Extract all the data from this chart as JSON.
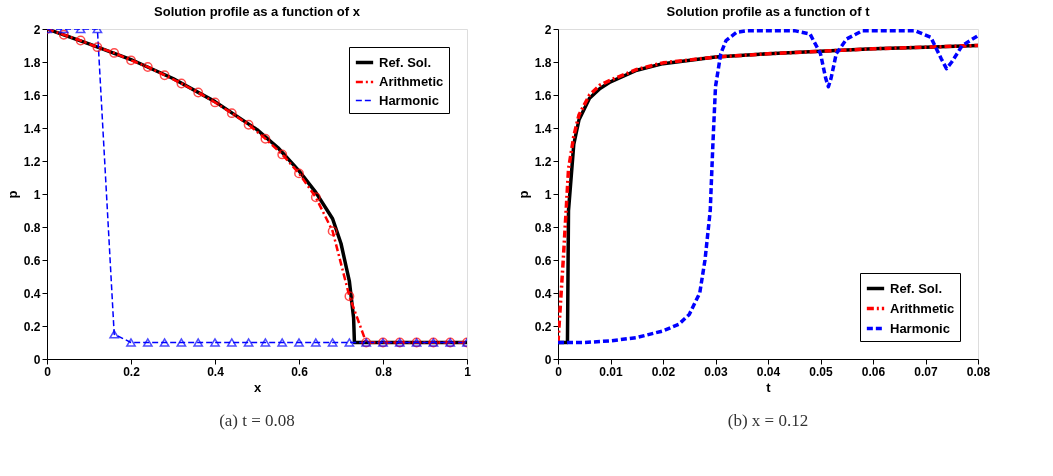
{
  "chart_data": [
    {
      "type": "line",
      "title": "Solution profile as a function of x",
      "xlabel": "x",
      "ylabel": "p",
      "xlim": [
        0,
        1
      ],
      "ylim": [
        0,
        2
      ],
      "xticks": [
        0,
        0.2,
        0.4,
        0.6,
        0.8,
        1
      ],
      "yticks": [
        0,
        0.2,
        0.4,
        0.6,
        0.8,
        1,
        1.2,
        1.4,
        1.6,
        1.8,
        2
      ],
      "grid": false,
      "legend": "top right",
      "annotations": [
        "(a) t = 0.08"
      ],
      "series": [
        {
          "name": "Ref. Sol.",
          "color": "#000000",
          "line_style": "solid",
          "marker": "none",
          "x": [
            0,
            0.1,
            0.2,
            0.3,
            0.4,
            0.5,
            0.55,
            0.6,
            0.64,
            0.68,
            0.7,
            0.72,
            0.73,
            0.732,
            0.8,
            0.9,
            1
          ],
          "values": [
            2,
            1.91,
            1.815,
            1.7,
            1.56,
            1.39,
            1.28,
            1.14,
            1.01,
            0.85,
            0.7,
            0.47,
            0.25,
            0.1,
            0.1,
            0.1,
            0.1
          ]
        },
        {
          "name": "Arithmetic",
          "color": "#ff0000",
          "line_style": "dotted",
          "marker": "circle",
          "x": [
            0,
            0.04,
            0.08,
            0.12,
            0.16,
            0.2,
            0.24,
            0.28,
            0.32,
            0.36,
            0.4,
            0.44,
            0.48,
            0.52,
            0.56,
            0.6,
            0.64,
            0.68,
            0.72,
            0.76,
            0.8,
            0.84,
            0.88,
            0.92,
            0.96,
            1
          ],
          "values": [
            2,
            1.965,
            1.93,
            1.89,
            1.855,
            1.81,
            1.77,
            1.72,
            1.67,
            1.615,
            1.555,
            1.49,
            1.42,
            1.335,
            1.24,
            1.125,
            0.98,
            0.775,
            0.38,
            0.1,
            0.1,
            0.1,
            0.1,
            0.1,
            0.1,
            0.1
          ]
        },
        {
          "name": "Harmonic",
          "color": "#0000ff",
          "line_style": "dashed",
          "marker": "triangle",
          "x": [
            0,
            0.04,
            0.08,
            0.12,
            0.16,
            0.2,
            0.24,
            0.28,
            0.32,
            0.36,
            0.4,
            0.44,
            0.48,
            0.52,
            0.56,
            0.6,
            0.64,
            0.68,
            0.72,
            0.76,
            0.8,
            0.84,
            0.88,
            0.92,
            0.96,
            1
          ],
          "values": [
            2,
            2,
            2,
            2,
            0.15,
            0.1,
            0.1,
            0.1,
            0.1,
            0.1,
            0.1,
            0.1,
            0.1,
            0.1,
            0.1,
            0.1,
            0.1,
            0.1,
            0.1,
            0.1,
            0.1,
            0.1,
            0.1,
            0.1,
            0.1,
            0.1
          ]
        }
      ]
    },
    {
      "type": "line",
      "title": "Solution profile as a function of t",
      "xlabel": "t",
      "ylabel": "p",
      "xlim": [
        0,
        0.08
      ],
      "ylim": [
        0,
        2
      ],
      "xticks": [
        0,
        0.01,
        0.02,
        0.03,
        0.04,
        0.05,
        0.06,
        0.07,
        0.08
      ],
      "yticks": [
        0,
        0.2,
        0.4,
        0.6,
        0.8,
        1,
        1.2,
        1.4,
        1.6,
        1.8,
        2
      ],
      "grid": false,
      "legend": "bottom right",
      "annotations": [
        "(b) x = 0.12"
      ],
      "series": [
        {
          "name": "Ref. Sol.",
          "color": "#000000",
          "line_style": "solid",
          "marker": "none",
          "x": [
            0,
            0.0018,
            0.002,
            0.003,
            0.004,
            0.006,
            0.008,
            0.01,
            0.015,
            0.02,
            0.03,
            0.04,
            0.05,
            0.06,
            0.07,
            0.08
          ],
          "values": [
            0.1,
            0.1,
            0.9,
            1.3,
            1.45,
            1.58,
            1.64,
            1.68,
            1.75,
            1.79,
            1.83,
            1.85,
            1.865,
            1.88,
            1.89,
            1.9
          ]
        },
        {
          "name": "Arithmetic",
          "color": "#ff0000",
          "line_style": "dotted",
          "marker": "none",
          "x": [
            0,
            0.001,
            0.002,
            0.003,
            0.004,
            0.006,
            0.008,
            0.01,
            0.015,
            0.02,
            0.03,
            0.04,
            0.05,
            0.06,
            0.07,
            0.08
          ],
          "values": [
            0.1,
            0.6,
            1.15,
            1.35,
            1.48,
            1.6,
            1.66,
            1.69,
            1.755,
            1.795,
            1.83,
            1.85,
            1.865,
            1.88,
            1.89,
            1.9
          ]
        },
        {
          "name": "Harmonic",
          "color": "#0000ff",
          "line_style": "dashed",
          "marker": "none",
          "x": [
            0,
            0.005,
            0.01,
            0.015,
            0.02,
            0.023,
            0.025,
            0.027,
            0.028,
            0.029,
            0.0295,
            0.03,
            0.031,
            0.032,
            0.034,
            0.036,
            0.045,
            0.048,
            0.05,
            0.051,
            0.0515,
            0.052,
            0.053,
            0.055,
            0.058,
            0.068,
            0.071,
            0.073,
            0.074,
            0.075,
            0.077,
            0.08
          ],
          "values": [
            0.1,
            0.1,
            0.11,
            0.13,
            0.17,
            0.21,
            0.27,
            0.4,
            0.6,
            0.9,
            1.3,
            1.65,
            1.85,
            1.93,
            1.98,
            1.99,
            1.99,
            1.97,
            1.85,
            1.7,
            1.65,
            1.7,
            1.85,
            1.94,
            1.99,
            1.99,
            1.95,
            1.82,
            1.76,
            1.8,
            1.9,
            1.96
          ]
        }
      ]
    }
  ]
}
